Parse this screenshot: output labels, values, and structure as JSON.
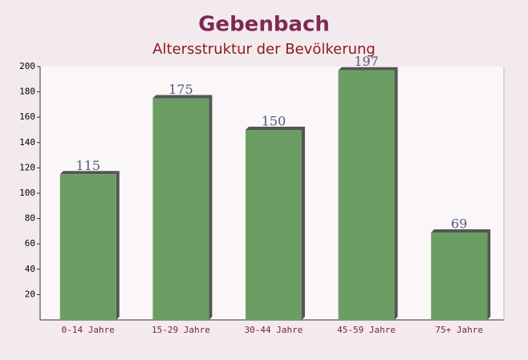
{
  "chart_data": {
    "type": "bar",
    "title": "Gebenbach",
    "subtitle": "Altersstruktur der Bevölkerung",
    "categories": [
      "0-14 Jahre",
      "15-29 Jahre",
      "30-44 Jahre",
      "45-59 Jahre",
      "75+ Jahre"
    ],
    "values": [
      115,
      175,
      150,
      197,
      69
    ],
    "color": "#6a9e63",
    "ylim": [
      0,
      200
    ],
    "yticks": [
      20,
      40,
      60,
      80,
      100,
      120,
      140,
      160,
      180,
      200
    ]
  }
}
